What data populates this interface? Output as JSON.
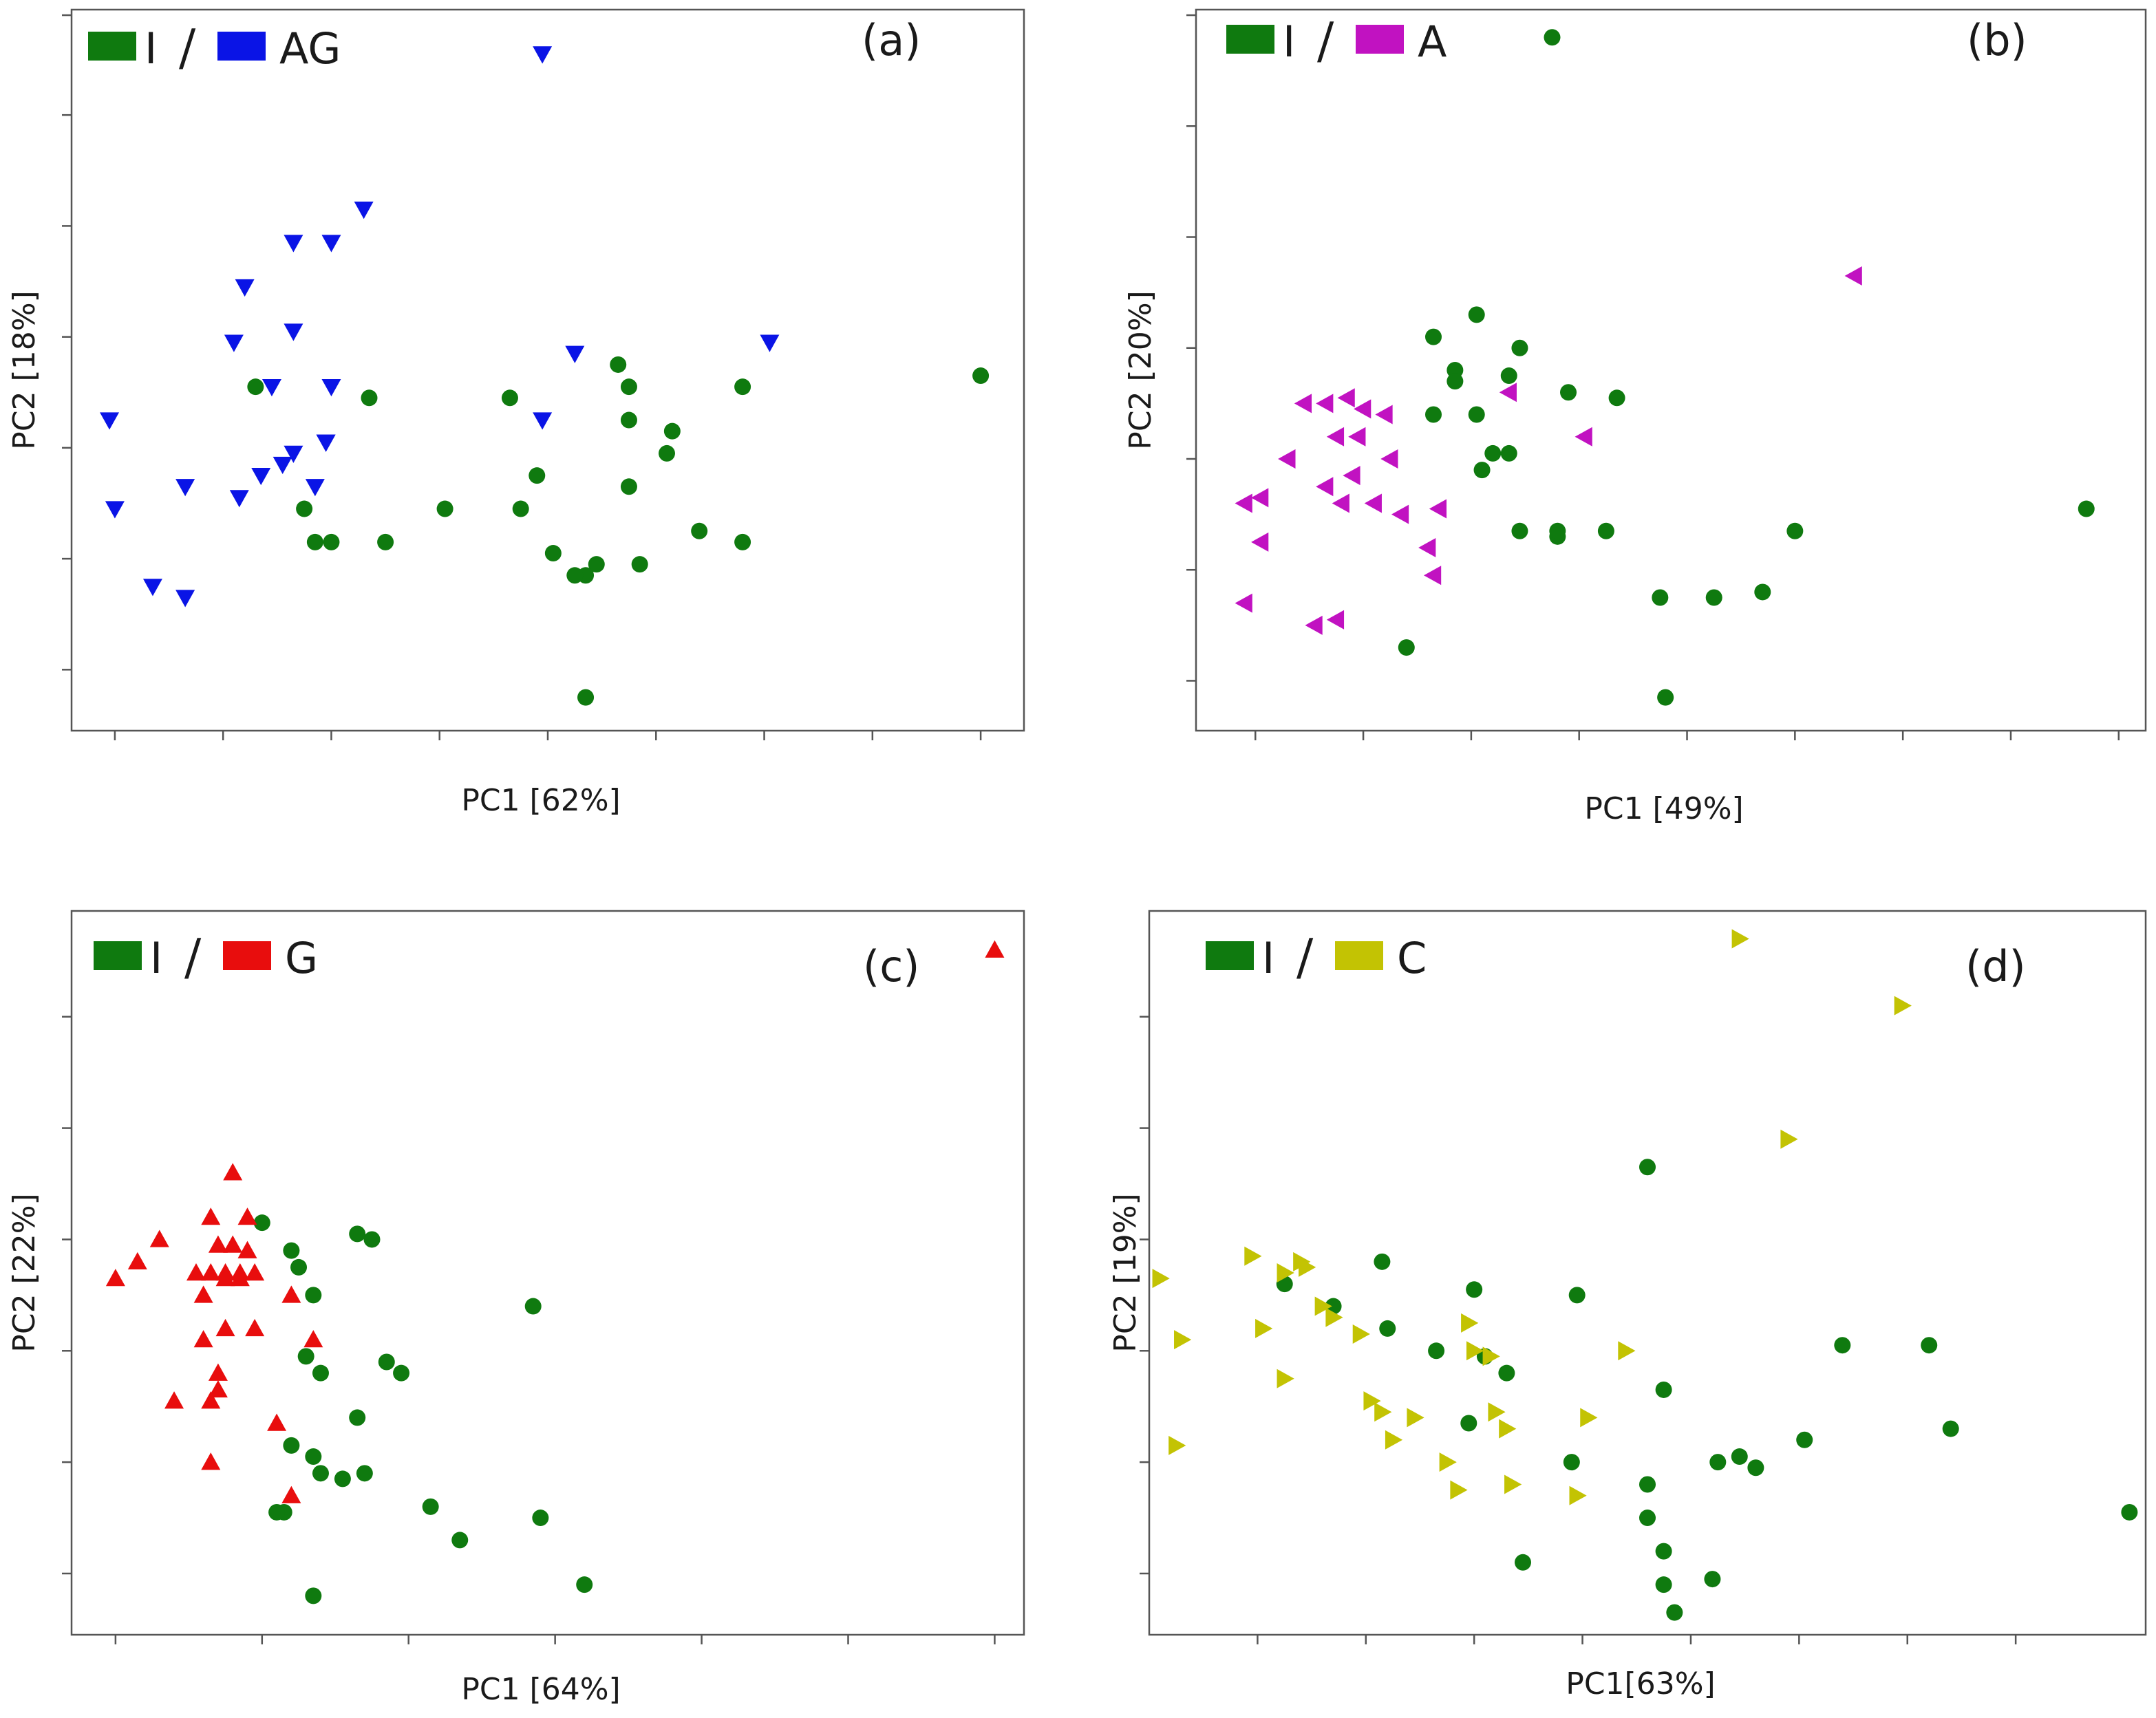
{
  "figure": {
    "title": ""
  },
  "chart_data": [
    {
      "type": "scatter",
      "panel_label": "(a)",
      "title": "",
      "xlabel": "PC1 [62%]",
      "ylabel": "PC2 [18%]",
      "xlim": [
        0,
        8.8
      ],
      "ylim": [
        0,
        6.5
      ],
      "x_ticks": [
        0.4,
        1.4,
        2.4,
        3.4,
        4.4,
        5.4,
        6.4,
        7.4,
        8.4
      ],
      "y_ticks": [
        0.55,
        1.55,
        2.55,
        3.55,
        4.55,
        5.55,
        6.45
      ],
      "x_tick_labels": [],
      "y_tick_labels": [],
      "legend": {
        "placement": "top-left",
        "items": [
          "I",
          "AG"
        ],
        "separator": "/"
      },
      "series": [
        {
          "name": "I",
          "marker": "circle",
          "color": "#0f7a0f",
          "points": [
            [
              8.4,
              3.2
            ],
            [
              6.2,
              3.1
            ],
            [
              5.15,
              3.1
            ],
            [
              5.15,
              2.8
            ],
            [
              5.05,
              3.3
            ],
            [
              5.55,
              2.7
            ],
            [
              5.5,
              2.5
            ],
            [
              5.15,
              2.2
            ],
            [
              6.2,
              1.7
            ],
            [
              5.8,
              1.8
            ],
            [
              5.25,
              1.5
            ],
            [
              4.45,
              1.6
            ],
            [
              4.85,
              1.5
            ],
            [
              4.75,
              1.4
            ],
            [
              4.65,
              1.4
            ],
            [
              4.3,
              2.3
            ],
            [
              4.05,
              3.0
            ],
            [
              4.15,
              2.0
            ],
            [
              3.45,
              2.0
            ],
            [
              2.9,
              1.7
            ],
            [
              2.4,
              1.7
            ],
            [
              2.25,
              1.7
            ],
            [
              2.15,
              2.0
            ],
            [
              2.75,
              3.0
            ],
            [
              1.7,
              3.1
            ],
            [
              4.75,
              0.3
            ]
          ]
        },
        {
          "name": "AG",
          "marker": "triangle-down",
          "color": "#0a14e6",
          "points": [
            [
              4.35,
              6.1
            ],
            [
              2.7,
              4.7
            ],
            [
              2.05,
              4.4
            ],
            [
              2.4,
              4.4
            ],
            [
              1.6,
              4.0
            ],
            [
              2.05,
              3.6
            ],
            [
              1.5,
              3.5
            ],
            [
              1.85,
              3.1
            ],
            [
              2.4,
              3.1
            ],
            [
              4.65,
              3.4
            ],
            [
              6.45,
              3.5
            ],
            [
              4.35,
              2.8
            ],
            [
              0.35,
              2.8
            ],
            [
              2.35,
              2.6
            ],
            [
              2.35,
              2.6
            ],
            [
              2.05,
              2.5
            ],
            [
              1.95,
              2.4
            ],
            [
              1.75,
              2.3
            ],
            [
              1.55,
              2.1
            ],
            [
              1.05,
              2.2
            ],
            [
              2.25,
              2.2
            ],
            [
              0.4,
              2.0
            ],
            [
              0.75,
              1.3
            ],
            [
              1.05,
              1.2
            ]
          ]
        }
      ]
    },
    {
      "type": "scatter",
      "panel_label": "(b)",
      "title": "",
      "xlabel": "PC1 [49%]",
      "ylabel": "PC2 [20%]",
      "xlim": [
        0,
        8.8
      ],
      "ylim": [
        0,
        6.5
      ],
      "x_ticks": [
        0.55,
        1.55,
        2.55,
        3.55,
        4.55,
        5.55,
        6.55,
        7.55,
        8.55
      ],
      "y_ticks": [
        0.45,
        1.45,
        2.45,
        3.45,
        4.45,
        5.45,
        6.45
      ],
      "x_tick_labels": [],
      "y_tick_labels": [],
      "legend": {
        "placement": "top-left",
        "items": [
          "I",
          "A"
        ],
        "separator": "/"
      },
      "series": [
        {
          "name": "I",
          "marker": "circle",
          "color": "#0f7a0f",
          "points": [
            [
              3.3,
              6.25
            ],
            [
              2.6,
              3.75
            ],
            [
              2.2,
              3.55
            ],
            [
              3.0,
              3.45
            ],
            [
              2.4,
              3.25
            ],
            [
              2.4,
              3.15
            ],
            [
              2.9,
              3.2
            ],
            [
              3.45,
              3.05
            ],
            [
              2.2,
              2.85
            ],
            [
              2.6,
              2.85
            ],
            [
              2.75,
              2.5
            ],
            [
              2.9,
              2.5
            ],
            [
              2.65,
              2.35
            ],
            [
              3.9,
              3.0
            ],
            [
              3.0,
              1.8
            ],
            [
              3.35,
              1.75
            ],
            [
              3.35,
              1.8
            ],
            [
              3.8,
              1.8
            ],
            [
              5.55,
              1.8
            ],
            [
              8.25,
              2.0
            ],
            [
              4.3,
              1.2
            ],
            [
              4.8,
              1.2
            ],
            [
              5.25,
              1.25
            ],
            [
              1.95,
              0.75
            ],
            [
              4.35,
              0.3
            ]
          ]
        },
        {
          "name": "A",
          "marker": "triangle-left",
          "color": "#c112c1",
          "points": [
            [
              6.1,
              4.1
            ],
            [
              1.2,
              2.95
            ],
            [
              1.55,
              2.9
            ],
            [
              1.4,
              3.0
            ],
            [
              1.0,
              2.95
            ],
            [
              1.75,
              2.85
            ],
            [
              2.9,
              3.05
            ],
            [
              1.3,
              2.65
            ],
            [
              1.5,
              2.65
            ],
            [
              3.6,
              2.65
            ],
            [
              0.85,
              2.45
            ],
            [
              0.85,
              2.45
            ],
            [
              1.8,
              2.45
            ],
            [
              1.45,
              2.3
            ],
            [
              0.6,
              2.1
            ],
            [
              0.45,
              2.05
            ],
            [
              1.35,
              2.05
            ],
            [
              1.2,
              2.2
            ],
            [
              2.25,
              2.0
            ],
            [
              1.65,
              2.05
            ],
            [
              1.9,
              1.95
            ],
            [
              0.6,
              1.7
            ],
            [
              2.15,
              1.65
            ],
            [
              2.2,
              1.4
            ],
            [
              0.45,
              1.15
            ],
            [
              1.1,
              0.95
            ],
            [
              1.3,
              1.0
            ]
          ]
        }
      ]
    },
    {
      "type": "scatter",
      "panel_label": "(c)",
      "title": "",
      "xlabel": "PC1 [64%]",
      "ylabel": "PC2 [22%]",
      "xlim": [
        0,
        6.5
      ],
      "ylim": [
        0,
        6.5
      ],
      "x_ticks": [
        0.3,
        1.3,
        2.3,
        3.3,
        4.3,
        5.3,
        6.3
      ],
      "y_ticks": [
        0.55,
        1.55,
        2.55,
        3.55,
        4.55,
        5.55
      ],
      "x_tick_labels": [],
      "y_tick_labels": [],
      "legend": {
        "placement": "top-left",
        "items": [
          "I",
          "G"
        ],
        "separator": "/"
      },
      "series": [
        {
          "name": "I",
          "marker": "circle",
          "color": "#0f7a0f",
          "points": [
            [
              1.3,
              3.7
            ],
            [
              1.95,
              3.6
            ],
            [
              2.05,
              3.55
            ],
            [
              1.5,
              3.45
            ],
            [
              1.55,
              3.3
            ],
            [
              1.65,
              3.05
            ],
            [
              3.15,
              2.95
            ],
            [
              1.6,
              2.5
            ],
            [
              2.15,
              2.45
            ],
            [
              2.25,
              2.35
            ],
            [
              1.7,
              2.35
            ],
            [
              1.95,
              1.95
            ],
            [
              1.5,
              1.7
            ],
            [
              1.65,
              1.6
            ],
            [
              1.7,
              1.45
            ],
            [
              1.85,
              1.4
            ],
            [
              2.0,
              1.45
            ],
            [
              1.45,
              1.1
            ],
            [
              1.4,
              1.1
            ],
            [
              2.45,
              1.15
            ],
            [
              3.2,
              1.05
            ],
            [
              2.65,
              0.85
            ],
            [
              3.5,
              0.45
            ],
            [
              1.65,
              0.35
            ]
          ]
        },
        {
          "name": "G",
          "marker": "triangle-up",
          "color": "#e80d0d",
          "points": [
            [
              6.3,
              6.15
            ],
            [
              1.1,
              4.15
            ],
            [
              0.95,
              3.75
            ],
            [
              1.2,
              3.75
            ],
            [
              0.6,
              3.55
            ],
            [
              1.0,
              3.5
            ],
            [
              1.1,
              3.5
            ],
            [
              1.2,
              3.45
            ],
            [
              0.45,
              3.35
            ],
            [
              0.3,
              3.2
            ],
            [
              0.85,
              3.25
            ],
            [
              0.95,
              3.25
            ],
            [
              1.05,
              3.25
            ],
            [
              1.15,
              3.25
            ],
            [
              1.25,
              3.25
            ],
            [
              1.05,
              3.2
            ],
            [
              1.15,
              3.2
            ],
            [
              0.9,
              3.05
            ],
            [
              1.5,
              3.05
            ],
            [
              1.05,
              2.75
            ],
            [
              1.25,
              2.75
            ],
            [
              0.9,
              2.65
            ],
            [
              1.65,
              2.65
            ],
            [
              1.0,
              2.35
            ],
            [
              1.0,
              2.2
            ],
            [
              0.7,
              2.1
            ],
            [
              0.95,
              2.1
            ],
            [
              1.4,
              1.9
            ],
            [
              0.95,
              1.55
            ],
            [
              1.5,
              1.25
            ]
          ]
        }
      ]
    },
    {
      "type": "scatter",
      "panel_label": "(d)",
      "title": "",
      "xlabel": "PC1[63%]",
      "ylabel": "PC2 [19%]",
      "xlim": [
        0,
        9.2
      ],
      "ylim": [
        0,
        6.5
      ],
      "x_ticks": [
        1.0,
        2.0,
        3.0,
        4.0,
        5.0,
        6.0,
        7.0,
        8.0
      ],
      "y_ticks": [
        0.55,
        1.55,
        2.55,
        3.55,
        4.55,
        5.55
      ],
      "x_tick_labels": [],
      "y_tick_labels": [],
      "legend": {
        "placement": "top-left",
        "items": [
          "I",
          "C"
        ],
        "separator": "/"
      },
      "series": [
        {
          "name": "I",
          "marker": "circle",
          "color": "#0f7a0f",
          "points": [
            [
              4.6,
              4.2
            ],
            [
              1.25,
              3.15
            ],
            [
              1.7,
              2.95
            ],
            [
              2.15,
              3.35
            ],
            [
              2.2,
              2.75
            ],
            [
              3.0,
              3.1
            ],
            [
              3.95,
              3.05
            ],
            [
              2.65,
              2.55
            ],
            [
              3.1,
              2.5
            ],
            [
              3.3,
              2.35
            ],
            [
              4.75,
              2.2
            ],
            [
              6.4,
              2.6
            ],
            [
              7.2,
              2.6
            ],
            [
              2.95,
              1.9
            ],
            [
              3.9,
              1.55
            ],
            [
              4.6,
              1.35
            ],
            [
              5.25,
              1.55
            ],
            [
              5.45,
              1.6
            ],
            [
              5.6,
              1.5
            ],
            [
              6.05,
              1.75
            ],
            [
              7.4,
              1.85
            ],
            [
              4.6,
              1.05
            ],
            [
              9.05,
              1.1
            ],
            [
              4.75,
              0.75
            ],
            [
              3.45,
              0.65
            ],
            [
              5.2,
              0.5
            ],
            [
              4.75,
              0.45
            ],
            [
              4.85,
              0.2
            ]
          ]
        },
        {
          "name": "C",
          "marker": "triangle-right",
          "color": "#c3c303",
          "points": [
            [
              5.45,
              6.25
            ],
            [
              6.95,
              5.65
            ],
            [
              5.9,
              4.45
            ],
            [
              0.95,
              3.4
            ],
            [
              1.4,
              3.35
            ],
            [
              1.45,
              3.3
            ],
            [
              1.25,
              3.25
            ],
            [
              0.1,
              3.2
            ],
            [
              1.6,
              2.95
            ],
            [
              2.95,
              2.8
            ],
            [
              1.7,
              2.85
            ],
            [
              1.05,
              2.75
            ],
            [
              1.95,
              2.7
            ],
            [
              0.3,
              2.65
            ],
            [
              3.0,
              2.55
            ],
            [
              3.15,
              2.5
            ],
            [
              4.4,
              2.55
            ],
            [
              1.25,
              2.3
            ],
            [
              2.05,
              2.1
            ],
            [
              3.2,
              2.0
            ],
            [
              2.15,
              2.0
            ],
            [
              4.05,
              1.95
            ],
            [
              2.45,
              1.95
            ],
            [
              3.3,
              1.85
            ],
            [
              2.25,
              1.75
            ],
            [
              0.25,
              1.7
            ],
            [
              2.75,
              1.55
            ],
            [
              3.35,
              1.35
            ],
            [
              2.85,
              1.3
            ],
            [
              3.95,
              1.25
            ]
          ]
        }
      ]
    }
  ]
}
